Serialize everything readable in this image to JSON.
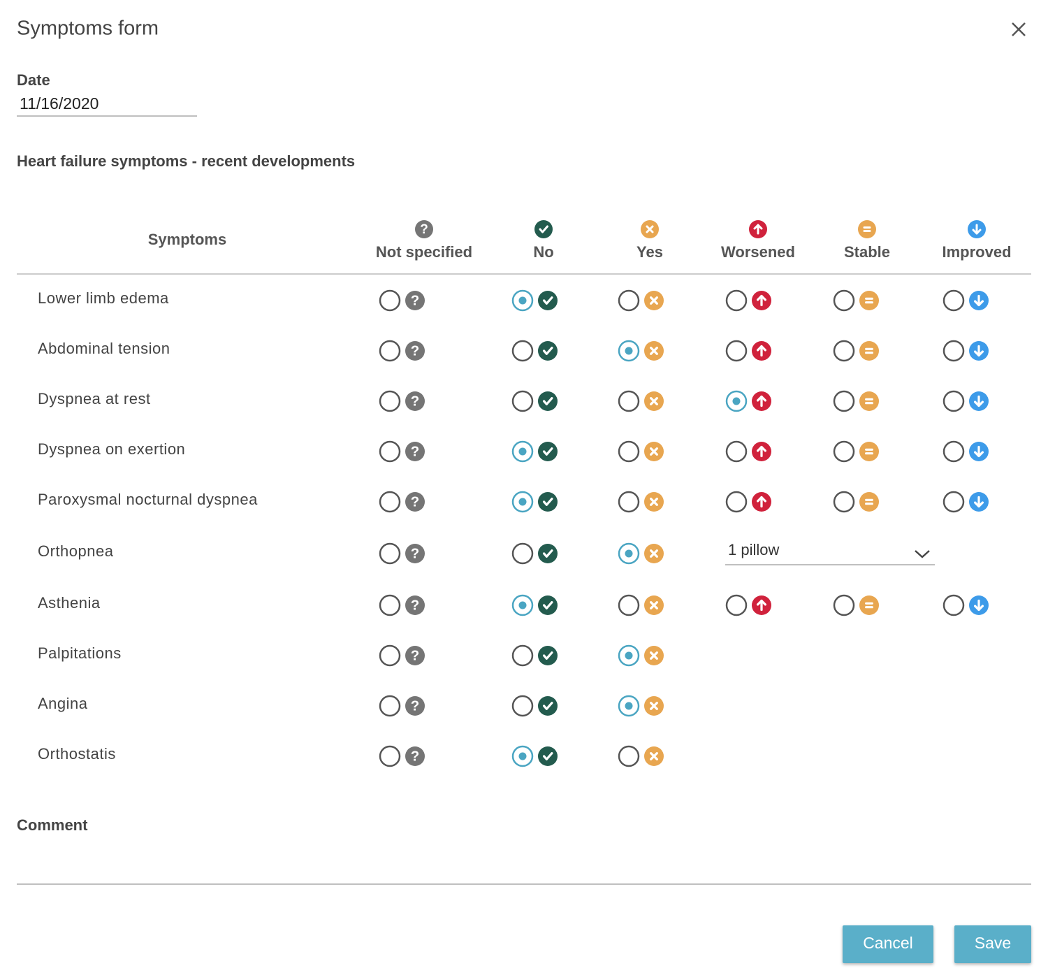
{
  "title": "Symptoms form",
  "date": {
    "label": "Date",
    "value": "11/16/2020"
  },
  "section_title": "Heart failure symptoms - recent developments",
  "table": {
    "header": "Symptoms",
    "columns": [
      "Not specified",
      "No",
      "Yes",
      "Worsened",
      "Stable",
      "Improved"
    ],
    "icon_colors": [
      "#757575",
      "#235b4e",
      "#e8a650",
      "#d0223c",
      "#e8a650",
      "#3d9be9"
    ],
    "rows": [
      {
        "label": "Lower limb edema",
        "selected": 1,
        "option_count": 6
      },
      {
        "label": "Abdominal tension",
        "selected": 2,
        "option_count": 6
      },
      {
        "label": "Dyspnea at rest",
        "selected": 3,
        "option_count": 6
      },
      {
        "label": "Dyspnea on exertion",
        "selected": 1,
        "option_count": 6
      },
      {
        "label": "Paroxysmal nocturnal dyspnea",
        "selected": 1,
        "option_count": 6
      },
      {
        "label": "Orthopnea",
        "selected": 2,
        "option_count": 3,
        "select": "1 pillow"
      },
      {
        "label": "Asthenia",
        "selected": 1,
        "option_count": 6
      },
      {
        "label": "Palpitations",
        "selected": 2,
        "option_count": 3
      },
      {
        "label": "Angina",
        "selected": 2,
        "option_count": 3
      },
      {
        "label": "Orthostatis",
        "selected": 1,
        "option_count": 3
      }
    ]
  },
  "comment": {
    "label": "Comment"
  },
  "buttons": [
    "Cancel",
    "Save"
  ]
}
